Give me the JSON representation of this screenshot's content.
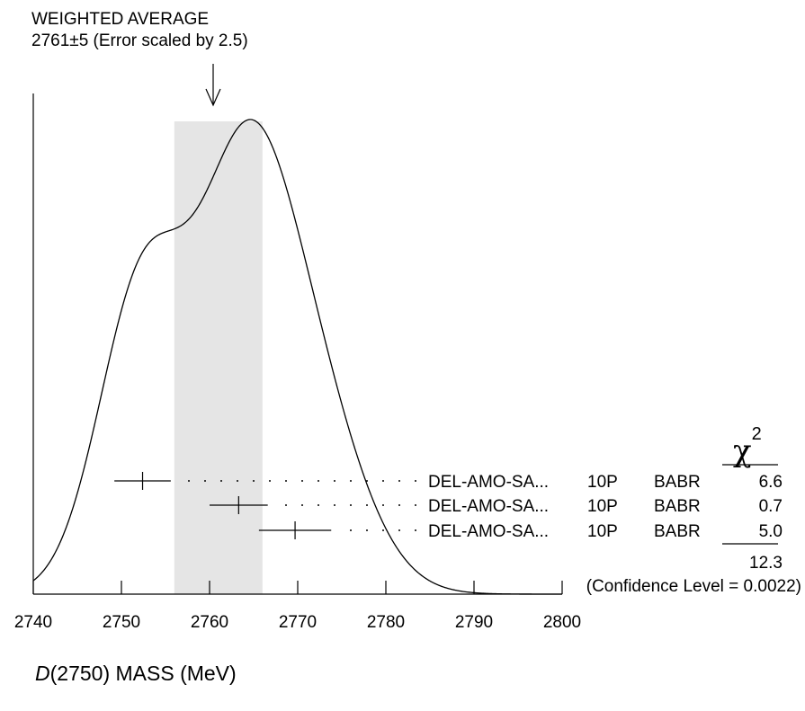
{
  "chart_data": {
    "type": "ideogram",
    "title": "WEIGHTED AVERAGE",
    "subtitle": "2761±5 (Error scaled by 2.5)",
    "xlabel_italic": "D",
    "xlabel_rest": "(2750) MASS (MeV)",
    "xlim": [
      2740,
      2800
    ],
    "xticks": [
      2740,
      2750,
      2760,
      2770,
      2780,
      2790,
      2800
    ],
    "average": {
      "value": 2761,
      "error": 5
    },
    "measurements": [
      {
        "value": 2752.4,
        "error": 3.2,
        "author": "DEL-AMO-SA...",
        "year": "10P",
        "experiment": "BABR",
        "chi2": "6.6"
      },
      {
        "value": 2763.3,
        "error": 3.3,
        "author": "DEL-AMO-SA...",
        "year": "10P",
        "experiment": "BABR",
        "chi2": "0.7"
      },
      {
        "value": 2769.7,
        "error": 4.1,
        "author": "DEL-AMO-SA...",
        "year": "10P",
        "experiment": "BABR",
        "chi2": "5.0"
      }
    ],
    "chi2_label": "χ",
    "chi2_superscript": "2",
    "chi2_total": "12.3",
    "confidence_level": "(Confidence Level = 0.0022)",
    "band_color": "#e5e5e5",
    "line_color": "#000000"
  }
}
